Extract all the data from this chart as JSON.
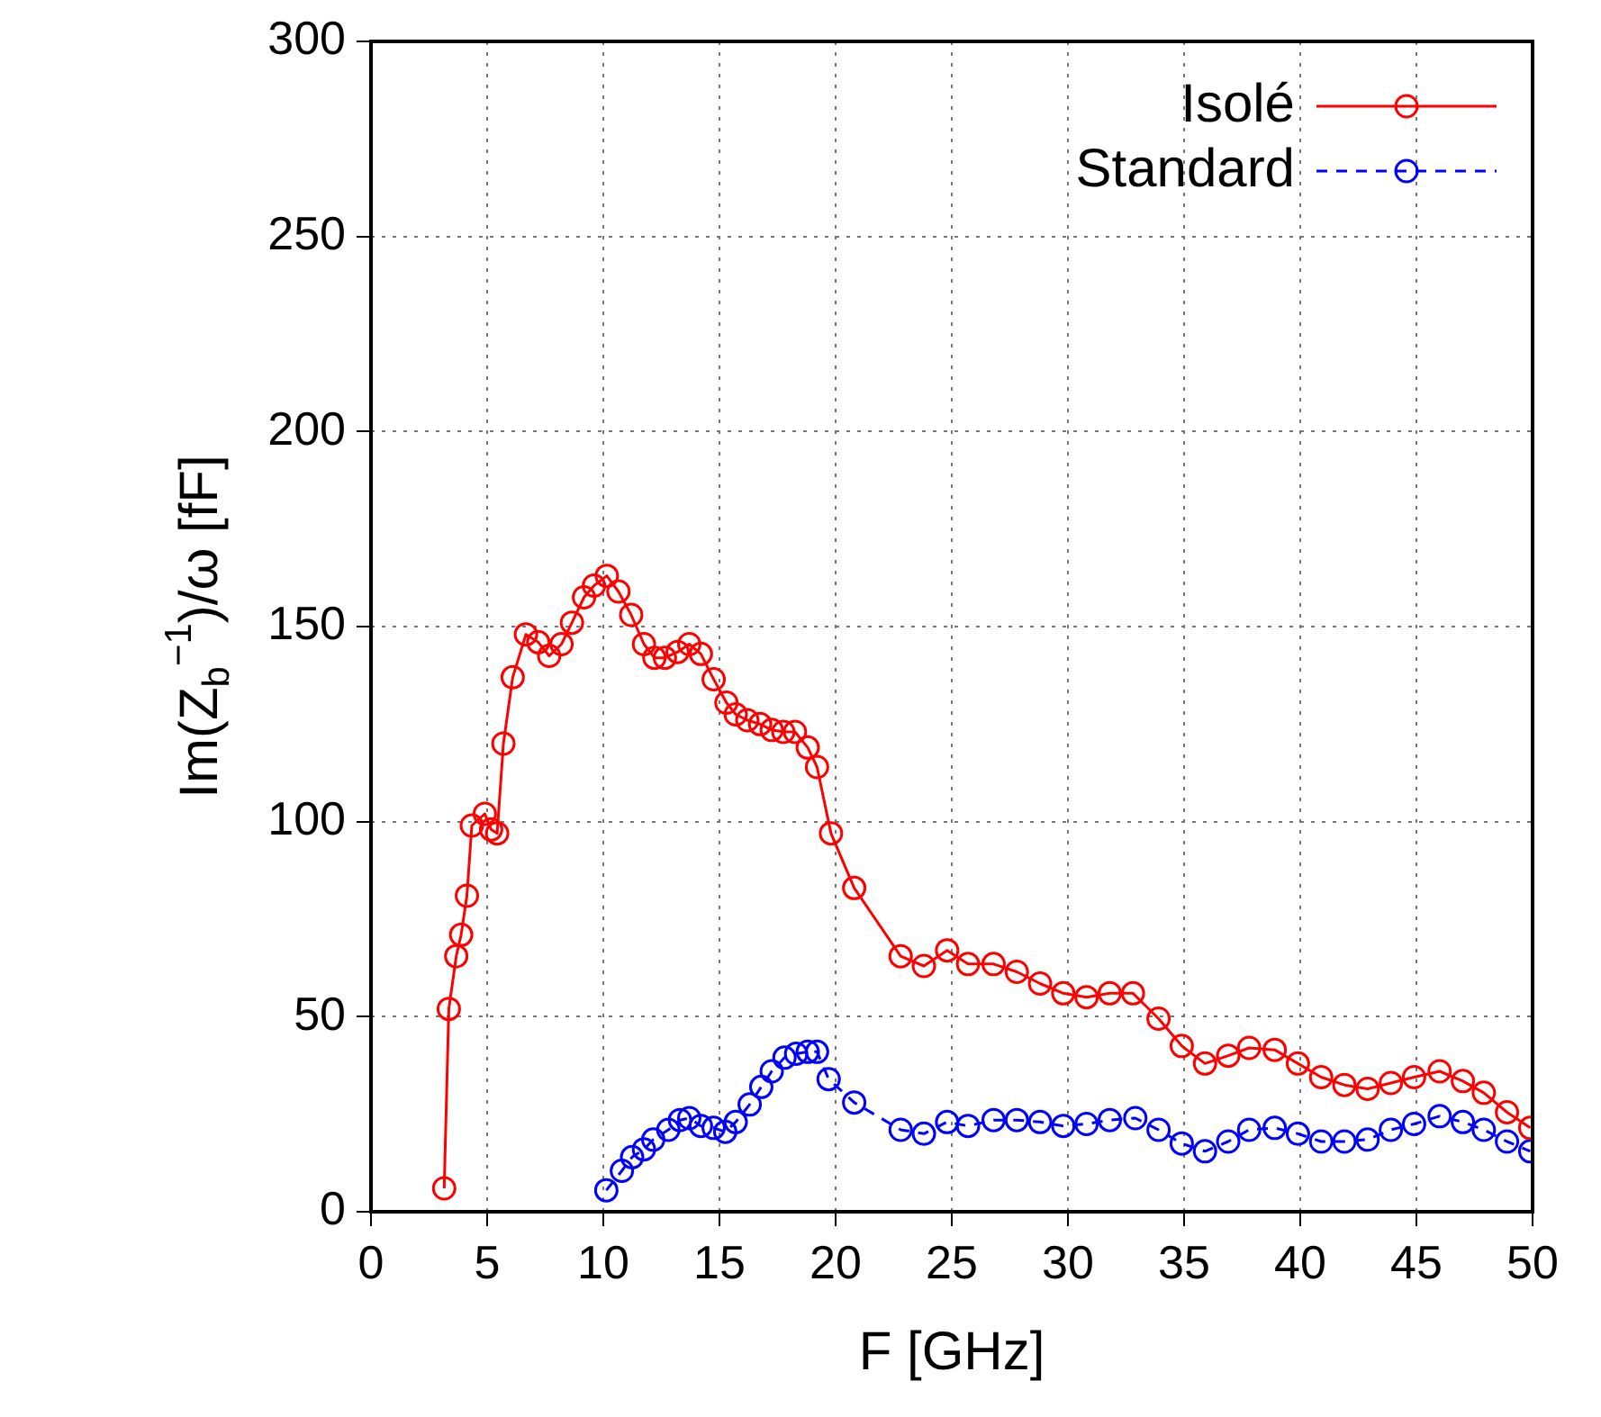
{
  "chart_data": {
    "type": "line",
    "xlabel": "F [GHz]",
    "ylabel": "Im(Z$_{b}$$^{−1}$)/ω [fF]",
    "xlim": [
      0,
      50
    ],
    "xticks": [
      0,
      5,
      10,
      15,
      20,
      25,
      30,
      35,
      40,
      45,
      50
    ],
    "ylim": [
      0,
      300
    ],
    "yticks": [
      0,
      50,
      100,
      150,
      200,
      250,
      300
    ],
    "grid": true,
    "legend": "top right",
    "marker": "circle",
    "series": [
      {
        "name": "Isolé",
        "color": "#ff0000",
        "line_style": "solid",
        "x": [
          3.15,
          3.35,
          3.67,
          3.88,
          4.13,
          4.34,
          4.9,
          5.17,
          5.43,
          5.7,
          6.1,
          6.67,
          7.2,
          7.67,
          8.2,
          8.65,
          9.17,
          9.6,
          10.15,
          10.65,
          11.2,
          11.75,
          12.2,
          12.65,
          13.2,
          13.7,
          14.2,
          14.75,
          15.3,
          15.7,
          16.2,
          16.75,
          17.25,
          17.75,
          18.25,
          18.8,
          19.2,
          19.8,
          20.8,
          22.8,
          23.8,
          24.8,
          25.7,
          26.8,
          27.8,
          28.8,
          29.8,
          30.8,
          31.8,
          32.8,
          33.9,
          34.9,
          35.9,
          36.9,
          37.8,
          38.9,
          39.9,
          40.9,
          41.9,
          42.9,
          43.9,
          44.9,
          46,
          47,
          47.9,
          48.9,
          49.9
        ],
        "values": [
          6,
          52,
          65.5,
          71,
          81,
          99,
          102,
          98,
          97,
          120,
          137,
          148,
          146,
          142.5,
          145.5,
          151,
          157.5,
          160.5,
          163,
          159,
          153,
          145.5,
          142,
          142,
          143.5,
          145.5,
          143,
          136.5,
          130.5,
          127.5,
          126,
          125,
          123.5,
          123,
          123,
          119,
          114,
          97,
          83,
          65.5,
          63,
          67,
          63.5,
          63.5,
          61.5,
          58.5,
          56,
          55,
          56,
          56,
          49.5,
          42.5,
          38,
          40,
          42,
          41.5,
          38,
          34.5,
          32.5,
          31.5,
          33,
          34.5,
          36,
          33.5,
          30.5,
          25.5,
          21.5
        ]
      },
      {
        "name": "Standard",
        "color": "#0000ff",
        "line_style": "dashed",
        "x": [
          10.13,
          10.8,
          11.24,
          11.75,
          12.15,
          12.8,
          13.3,
          13.7,
          14.2,
          14.75,
          15.25,
          15.7,
          16.3,
          16.8,
          17.25,
          17.8,
          18.3,
          18.8,
          19.2,
          19.7,
          20.8,
          22.8,
          23.8,
          24.8,
          25.7,
          26.8,
          27.8,
          28.8,
          29.8,
          30.8,
          31.8,
          32.9,
          33.9,
          34.9,
          35.9,
          36.9,
          37.8,
          38.9,
          39.9,
          40.9,
          41.9,
          42.9,
          43.9,
          44.9,
          46,
          47,
          47.9,
          48.9,
          49.9
        ],
        "values": [
          5.5,
          10.5,
          14,
          16,
          18.5,
          21,
          23.5,
          24,
          22,
          21.5,
          20.5,
          23,
          27.5,
          32,
          36,
          39.5,
          40.5,
          41,
          41,
          34,
          28,
          21,
          20,
          23,
          22,
          23.5,
          23.5,
          23,
          22,
          22.5,
          23.5,
          24,
          21,
          17.5,
          15.5,
          18,
          21,
          21.5,
          20,
          18,
          18,
          18.5,
          21,
          22.5,
          24.5,
          23,
          21,
          18,
          15.5
        ]
      }
    ]
  }
}
